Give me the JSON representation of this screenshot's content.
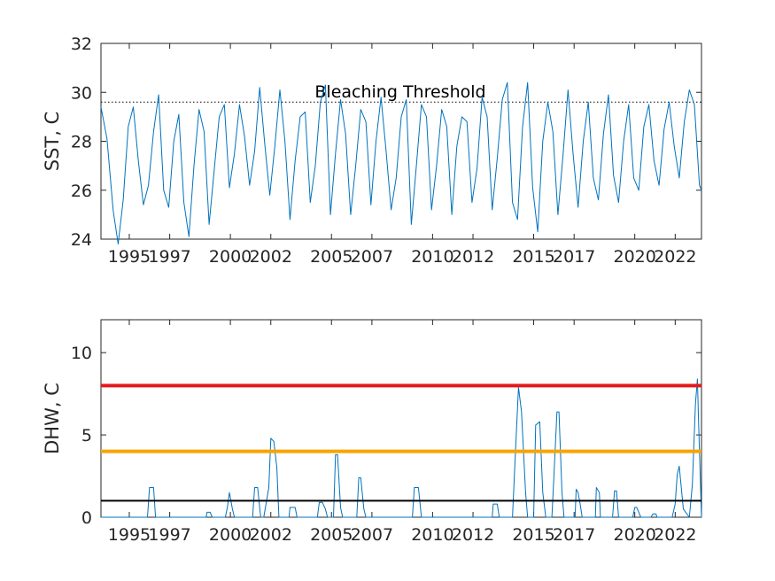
{
  "chart_data": [
    {
      "type": "line",
      "ylabel": "SST, C",
      "xlim": [
        1993.6,
        2023.3
      ],
      "ylim": [
        24,
        32
      ],
      "yticks": [
        24,
        26,
        28,
        30,
        32
      ],
      "xticks": [
        1995,
        1997,
        2000,
        2002,
        2005,
        2007,
        2010,
        2012,
        2015,
        2017,
        2020,
        2022
      ],
      "xtick_labels": [
        "1995",
        "1997",
        "2000",
        "2002",
        "2005",
        "2007",
        "2010",
        "2012",
        "2015",
        "2017",
        "2020",
        "2022"
      ],
      "threshold": {
        "label": "Bleaching Threshold",
        "value": 29.6,
        "style": "dotted",
        "color": "#000000"
      },
      "series": [
        {
          "color": "#0072BD",
          "x": [
            1993.6,
            1993.9,
            1994.2,
            1994.45,
            1994.7,
            1994.95,
            1995.2,
            1995.45,
            1995.7,
            1995.95,
            1996.2,
            1996.45,
            1996.7,
            1996.95,
            1997.2,
            1997.45,
            1997.7,
            1997.95,
            1998.2,
            1998.45,
            1998.7,
            1998.95,
            1999.2,
            1999.45,
            1999.7,
            1999.95,
            2000.2,
            2000.45,
            2000.7,
            2000.95,
            2001.2,
            2001.45,
            2001.7,
            2001.95,
            2002.2,
            2002.45,
            2002.7,
            2002.95,
            2003.2,
            2003.45,
            2003.7,
            2003.95,
            2004.2,
            2004.45,
            2004.7,
            2004.95,
            2005.2,
            2005.45,
            2005.7,
            2005.95,
            2006.2,
            2006.45,
            2006.7,
            2006.95,
            2007.2,
            2007.45,
            2007.7,
            2007.95,
            2008.2,
            2008.45,
            2008.7,
            2008.95,
            2009.2,
            2009.45,
            2009.7,
            2009.95,
            2010.2,
            2010.45,
            2010.7,
            2010.95,
            2011.2,
            2011.45,
            2011.7,
            2011.95,
            2012.2,
            2012.45,
            2012.7,
            2012.95,
            2013.2,
            2013.45,
            2013.7,
            2013.95,
            2014.2,
            2014.45,
            2014.7,
            2014.95,
            2015.2,
            2015.45,
            2015.7,
            2015.95,
            2016.2,
            2016.45,
            2016.7,
            2016.95,
            2017.2,
            2017.45,
            2017.7,
            2017.95,
            2018.2,
            2018.45,
            2018.7,
            2018.95,
            2019.2,
            2019.45,
            2019.7,
            2019.95,
            2020.2,
            2020.45,
            2020.7,
            2020.95,
            2021.2,
            2021.45,
            2021.7,
            2021.95,
            2022.2,
            2022.45,
            2022.7,
            2022.95,
            2023.2,
            2023.3
          ],
          "values": [
            29.4,
            28.1,
            25.2,
            23.8,
            25.6,
            28.6,
            29.4,
            27.2,
            25.4,
            26.2,
            28.4,
            29.9,
            26.0,
            25.3,
            28.0,
            29.1,
            25.5,
            24.1,
            27.0,
            29.3,
            28.4,
            24.6,
            26.8,
            29.0,
            29.5,
            26.1,
            27.5,
            29.5,
            28.2,
            26.2,
            27.6,
            30.2,
            27.9,
            25.8,
            27.8,
            30.1,
            28.0,
            24.8,
            27.2,
            29.0,
            29.2,
            25.5,
            27.0,
            29.6,
            30.3,
            25.0,
            27.5,
            29.7,
            28.3,
            25.0,
            27.0,
            29.3,
            28.8,
            25.4,
            28.0,
            29.8,
            27.6,
            25.2,
            26.5,
            29.0,
            29.7,
            24.6,
            27.0,
            29.5,
            29.0,
            25.2,
            27.0,
            29.3,
            28.6,
            25.0,
            27.8,
            29.0,
            28.8,
            25.5,
            26.9,
            29.8,
            29.0,
            25.2,
            27.3,
            29.7,
            30.4,
            25.5,
            24.8,
            28.6,
            30.4,
            26.1,
            24.3,
            28.0,
            29.6,
            28.4,
            25.0,
            27.4,
            30.1,
            27.5,
            25.3,
            28.0,
            29.6,
            26.5,
            25.6,
            28.3,
            29.9,
            26.6,
            25.5,
            28.0,
            29.5,
            26.5,
            26.0,
            28.6,
            29.5,
            27.2,
            26.2,
            28.5,
            29.6,
            27.8,
            26.5,
            28.8,
            30.1,
            29.5,
            26.2,
            26.0
          ]
        }
      ]
    },
    {
      "type": "line",
      "ylabel": "DHW, C",
      "xlim": [
        1993.6,
        2023.3
      ],
      "ylim": [
        0,
        12
      ],
      "yticks": [
        0,
        5,
        10
      ],
      "xticks": [
        1995,
        1997,
        2000,
        2002,
        2005,
        2007,
        2010,
        2012,
        2015,
        2017,
        2020,
        2022
      ],
      "xtick_labels": [
        "1995",
        "1997",
        "2000",
        "2002",
        "2005",
        "2007",
        "2010",
        "2012",
        "2015",
        "2017",
        "2020",
        "2022"
      ],
      "hlines": [
        {
          "value": 8,
          "color": "#E41A1C",
          "width": 4
        },
        {
          "value": 4,
          "color": "#F7A400",
          "width": 4
        },
        {
          "value": 1,
          "color": "#000000",
          "width": 2
        }
      ],
      "series": [
        {
          "color": "#0072BD",
          "x": [
            1993.6,
            1995.9,
            1996.0,
            1996.05,
            1996.2,
            1996.3,
            1998.8,
            1998.85,
            1999.0,
            1999.1,
            1999.75,
            1999.85,
            1999.95,
            2000.1,
            2000.2,
            2001.1,
            2001.2,
            2001.35,
            2001.5,
            2001.65,
            2001.9,
            2002.0,
            2002.15,
            2002.3,
            2002.4,
            2002.9,
            2002.95,
            2003.2,
            2003.3,
            2004.3,
            2004.4,
            2004.55,
            2004.7,
            2004.8,
            2005.1,
            2005.2,
            2005.3,
            2005.45,
            2005.55,
            2006.25,
            2006.35,
            2006.45,
            2006.6,
            2006.7,
            2009.0,
            2009.1,
            2009.3,
            2009.45,
            2012.95,
            2013.0,
            2013.2,
            2013.3,
            2013.95,
            2014.1,
            2014.25,
            2014.4,
            2014.6,
            2014.7,
            2015.0,
            2015.1,
            2015.3,
            2015.45,
            2015.6,
            2015.9,
            2016.0,
            2016.15,
            2016.25,
            2016.4,
            2016.5,
            2017.05,
            2017.1,
            2017.2,
            2017.3,
            2017.4,
            2018.05,
            2018.1,
            2018.25,
            2018.3,
            2018.9,
            2019.0,
            2019.1,
            2019.2,
            2019.9,
            2020.0,
            2020.1,
            2020.2,
            2020.3,
            2020.8,
            2020.9,
            2021.05,
            2021.1,
            2021.85,
            2022.0,
            2022.1,
            2022.2,
            2022.4,
            2022.7,
            2022.85,
            2023.0,
            2023.1,
            2023.15,
            2023.3
          ],
          "values": [
            0,
            0,
            1.8,
            1.8,
            1.8,
            0,
            0,
            0.3,
            0.3,
            0,
            0,
            0.6,
            1.5,
            0.5,
            0,
            0,
            1.8,
            1.8,
            0,
            0,
            1.8,
            4.8,
            4.6,
            3.0,
            0,
            0,
            0.6,
            0.6,
            0,
            0,
            0.9,
            0.9,
            0.5,
            0,
            0,
            3.8,
            3.8,
            0.6,
            0,
            0,
            2.4,
            2.4,
            0.5,
            0,
            0,
            1.8,
            1.8,
            0,
            0,
            0.8,
            0.8,
            0,
            0,
            4.0,
            7.9,
            6.4,
            1.5,
            0,
            0,
            5.6,
            5.8,
            1.5,
            0,
            0,
            2.5,
            6.4,
            6.4,
            1.5,
            0,
            0,
            1.7,
            1.5,
            0.8,
            0,
            0,
            1.8,
            1.5,
            0,
            0,
            1.6,
            1.6,
            0,
            0,
            0.6,
            0.6,
            0.3,
            0,
            0,
            0.2,
            0.2,
            0,
            0,
            0.8,
            2.6,
            3.1,
            0.5,
            0,
            2.0,
            6.9,
            8.4,
            6.0,
            0
          ]
        }
      ]
    }
  ]
}
